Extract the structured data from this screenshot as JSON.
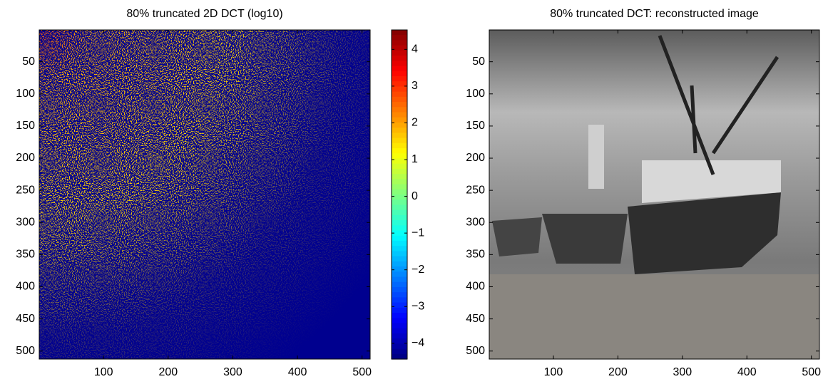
{
  "chart_data": [
    {
      "type": "image",
      "title": "80% truncated 2D DCT (log10)",
      "xlim": [
        0.5,
        512.5
      ],
      "ylim": [
        0.5,
        512.5
      ],
      "xticks": [
        100,
        200,
        300,
        400,
        500
      ],
      "yticks": [
        50,
        100,
        150,
        200,
        250,
        300,
        350,
        400,
        450,
        500
      ],
      "colormap": "jet",
      "clim": [
        -4.43,
        4.53
      ],
      "cticks": [
        {
          "value": -4,
          "label": "−4"
        },
        {
          "value": -3,
          "label": "−3"
        },
        {
          "value": -2,
          "label": "−2"
        },
        {
          "value": -1,
          "label": "−1"
        },
        0,
        1,
        2,
        3,
        4
      ]
    },
    {
      "type": "image",
      "title": "80% truncated DCT: reconstructed image",
      "xlim": [
        0.5,
        512.5
      ],
      "ylim": [
        0.5,
        512.5
      ],
      "xticks": [
        100,
        200,
        300,
        400,
        500
      ],
      "yticks": [
        50,
        100,
        150,
        200,
        250,
        300,
        350,
        400,
        450,
        500
      ],
      "colormap": "gray"
    }
  ]
}
